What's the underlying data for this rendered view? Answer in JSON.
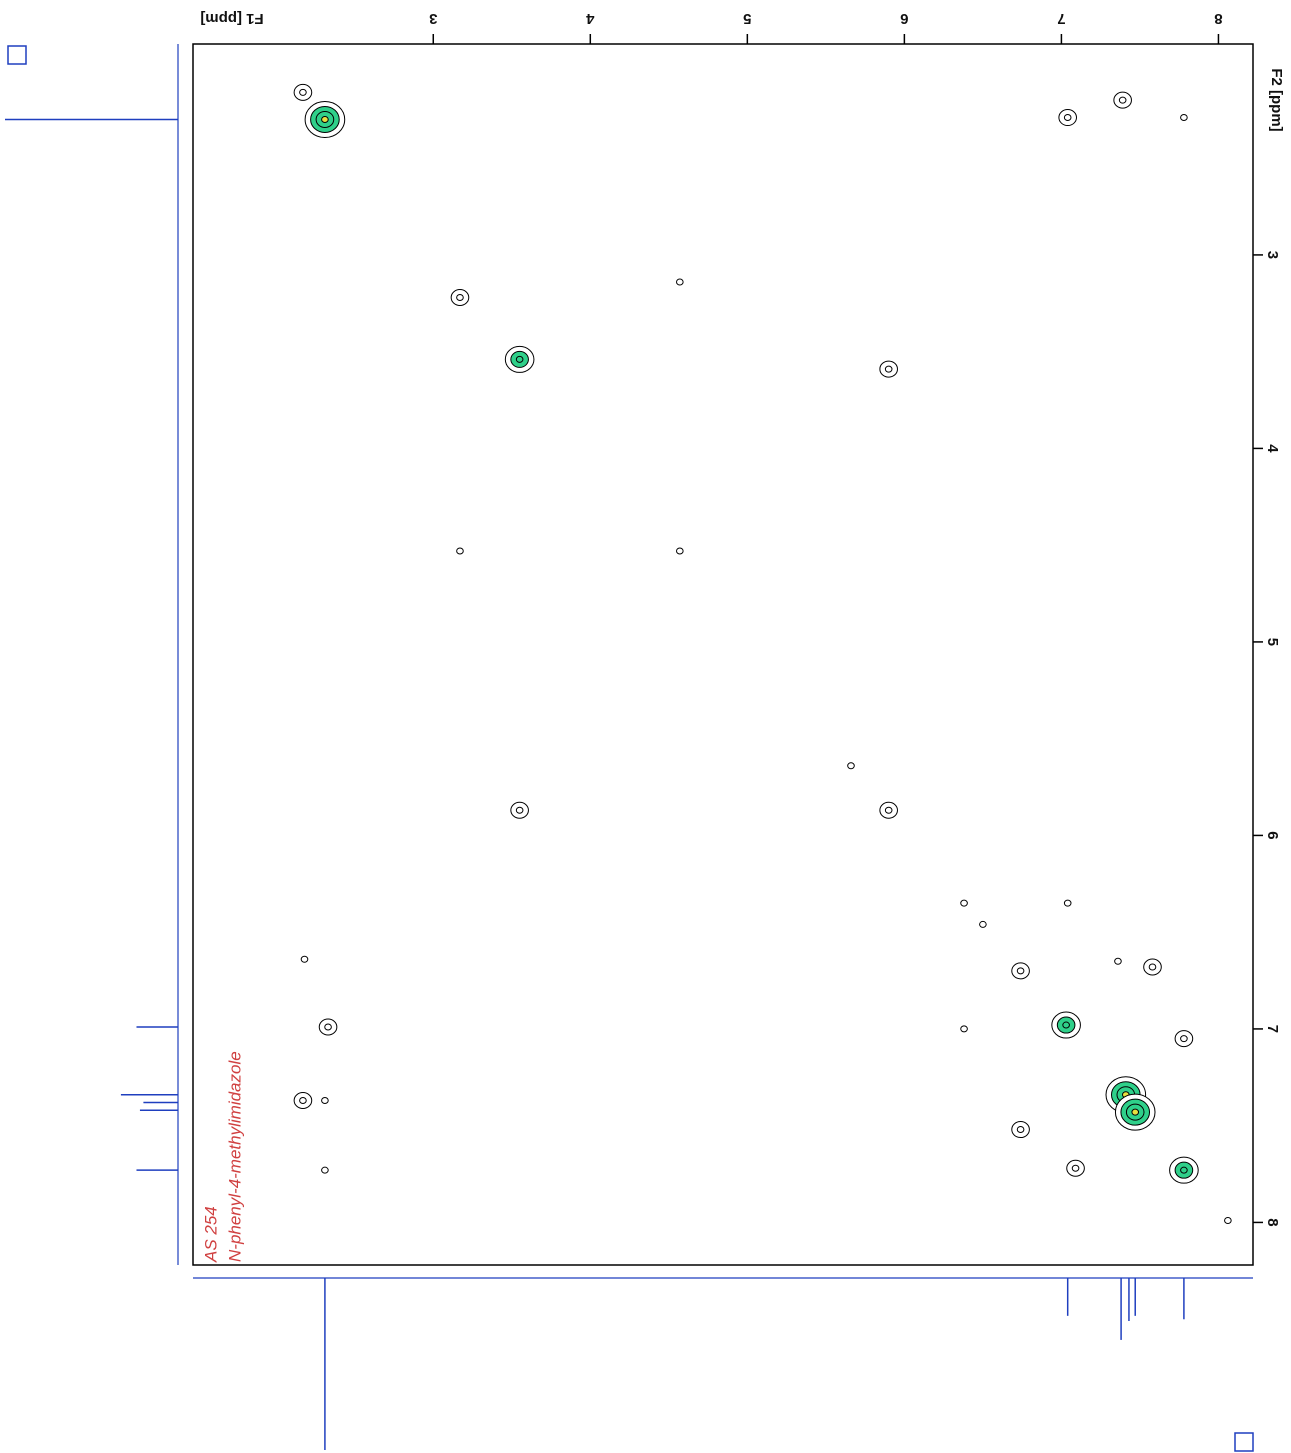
{
  "chart_data": {
    "type": "contour",
    "xlabel": "F1 [ppm]",
    "ylabel": "F2 [ppm]",
    "annotations": [
      "AS 254",
      "N-phenyl-4-methylimidazole"
    ],
    "xlim": [
      1.47,
      8.22
    ],
    "ylim": [
      1.91,
      8.22
    ],
    "xticks": [
      3,
      4,
      5,
      6,
      7,
      8
    ],
    "yticks": [
      3,
      4,
      5,
      6,
      7,
      8
    ],
    "contour_color": "#2fd08a",
    "core_color": "#e8e040",
    "trace_color": "#1f3fbf",
    "peaks": {
      "x": [
        2.31,
        2.17,
        7.04,
        7.39,
        7.78,
        3.17,
        4.57,
        3.55,
        5.9,
        3.17,
        4.57,
        3.55,
        5.9,
        5.66,
        6.38,
        7.04,
        6.5,
        6.74,
        7.58,
        7.36,
        2.18,
        7.03,
        2.33,
        6.38,
        7.78,
        7.41,
        7.47,
        6.74,
        2.17,
        2.31,
        7.78,
        7.09,
        2.31,
        8.06
      ],
      "y": [
        2.3,
        2.16,
        2.29,
        2.2,
        2.29,
        3.22,
        3.14,
        3.54,
        3.59,
        4.53,
        4.53,
        5.87,
        5.87,
        5.64,
        6.35,
        6.35,
        6.46,
        6.7,
        6.68,
        6.65,
        6.64,
        6.98,
        6.99,
        7.0,
        7.05,
        7.34,
        7.43,
        7.52,
        7.37,
        7.37,
        7.73,
        7.72,
        7.73,
        7.99
      ],
      "levels": [
        4,
        2,
        2,
        2,
        1,
        2,
        1,
        3,
        2,
        1,
        1,
        2,
        2,
        1,
        1,
        1,
        1,
        2,
        2,
        1,
        1,
        3,
        2,
        1,
        2,
        4,
        4,
        2,
        2,
        1,
        3,
        2,
        1,
        1
      ]
    },
    "projection_f2": {
      "positions": [
        2.3,
        6.99,
        7.34,
        7.38,
        7.42,
        7.73
      ],
      "heights": [
        100,
        24,
        33,
        20,
        22,
        24
      ]
    },
    "projection_f1": {
      "positions": [
        2.31,
        7.04,
        7.38,
        7.43,
        7.47,
        7.78
      ],
      "heights": [
        100,
        22,
        36,
        25,
        22,
        24
      ]
    }
  }
}
